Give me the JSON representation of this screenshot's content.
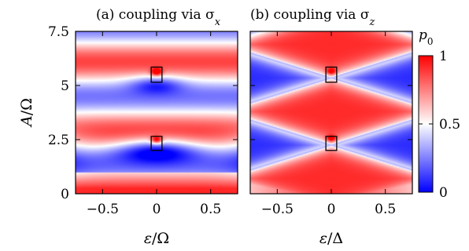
{
  "chart_data": [
    {
      "type": "heatmap",
      "title": "(a) coupling via σx",
      "title_text": "(a) coupling via σ",
      "title_sub": "x",
      "xlabel": "ε/Ω",
      "xlabel_sym": "ε",
      "xlabel_den": "/Ω",
      "ylabel": "A/Ω",
      "ylabel_sym": "A",
      "ylabel_den": "/Ω",
      "xlim": [
        -0.75,
        0.75
      ],
      "ylim": [
        0,
        7.5
      ],
      "xticks": [
        {
          "value": -0.5,
          "label": "−0.5"
        },
        {
          "value": 0,
          "label": "0"
        },
        {
          "value": 0.5,
          "label": "0.5"
        }
      ],
      "yticks": [
        {
          "value": 0,
          "label": "0"
        },
        {
          "value": 2.5,
          "label": "2.5"
        },
        {
          "value": 5,
          "label": "5"
        },
        {
          "value": 7.5,
          "label": "7.5"
        }
      ],
      "boxes": [
        {
          "x": [
            -0.05,
            0.05
          ],
          "y": [
            2.0,
            2.65
          ]
        },
        {
          "x": [
            -0.05,
            0.05
          ],
          "y": [
            5.15,
            5.85
          ]
        }
      ]
    },
    {
      "type": "heatmap",
      "title": "(b) coupling via σz",
      "title_text": "(b) coupling via σ",
      "title_sub": "z",
      "xlabel": "ε/Δ",
      "xlabel_sym": "ε",
      "xlabel_den": "/Δ",
      "xlim": [
        -0.75,
        0.75
      ],
      "ylim": [
        0,
        7.5
      ],
      "xticks": [
        {
          "value": -0.5,
          "label": "−0.5"
        },
        {
          "value": 0,
          "label": "0"
        },
        {
          "value": 0.5,
          "label": "0.5"
        }
      ],
      "boxes": [
        {
          "x": [
            -0.05,
            0.05
          ],
          "y": [
            2.0,
            2.65
          ]
        },
        {
          "x": [
            -0.05,
            0.05
          ],
          "y": [
            5.15,
            5.85
          ]
        }
      ]
    }
  ],
  "colorbar": {
    "label": "p0",
    "label_sym": "p",
    "label_sub": "0",
    "range": [
      0,
      1
    ],
    "ticks": [
      {
        "value": 0,
        "label": "0"
      },
      {
        "value": 0.5,
        "label": "0.5"
      },
      {
        "value": 1,
        "label": "1"
      }
    ],
    "colors": {
      "low": "#0000ff",
      "mid": "#ffffff",
      "high": "#ff0000"
    }
  }
}
